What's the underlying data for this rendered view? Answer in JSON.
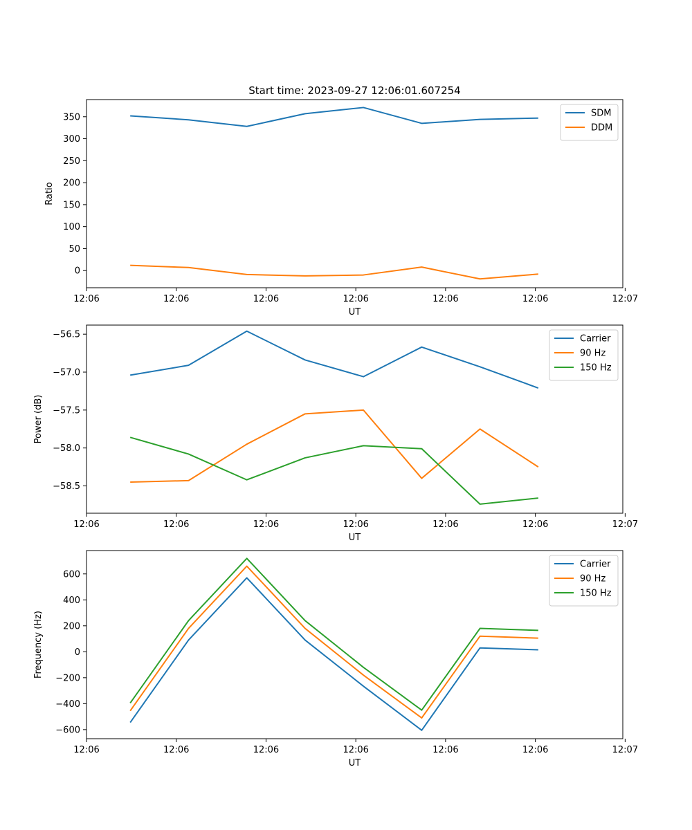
{
  "figure_title": "Start time: 2023-09-27 12:06:01.607254",
  "chart_data": [
    {
      "type": "line",
      "title": "Start time: 2023-09-27 12:06:01.607254",
      "xlabel": "UT",
      "ylabel": "Ratio",
      "xlim": [
        0,
        9.2
      ],
      "ylim": [
        -39,
        389
      ],
      "x": [
        0.75,
        1.75,
        2.75,
        3.75,
        4.75,
        5.75,
        6.75,
        7.75
      ],
      "x_ticks": [
        0,
        1.54,
        3.08,
        4.62,
        6.16,
        7.7,
        9.24
      ],
      "x_tick_labels": [
        "12:06",
        "12:06",
        "12:06",
        "12:06",
        "12:06",
        "12:06",
        "12:07"
      ],
      "y_ticks": [
        0,
        50,
        100,
        150,
        200,
        250,
        300,
        350
      ],
      "y_tick_labels": [
        "0",
        "50",
        "100",
        "150",
        "200",
        "250",
        "300",
        "350"
      ],
      "legend_position": "upper right",
      "series": [
        {
          "name": "SDM",
          "color": "#1f77b4",
          "values": [
            352,
            343,
            328,
            357,
            371,
            335,
            344,
            347
          ]
        },
        {
          "name": "DDM",
          "color": "#ff7f0e",
          "values": [
            12,
            7,
            -9,
            -12,
            -10,
            8,
            -19,
            -8
          ]
        }
      ]
    },
    {
      "type": "line",
      "title": "",
      "xlabel": "UT",
      "ylabel": "Power (dB)",
      "xlim": [
        0,
        9.2
      ],
      "ylim": [
        -58.86,
        -56.38
      ],
      "x": [
        0.75,
        1.75,
        2.75,
        3.75,
        4.75,
        5.75,
        6.75,
        7.75
      ],
      "x_ticks": [
        0,
        1.54,
        3.08,
        4.62,
        6.16,
        7.7,
        9.24
      ],
      "x_tick_labels": [
        "12:06",
        "12:06",
        "12:06",
        "12:06",
        "12:06",
        "12:06",
        "12:07"
      ],
      "y_ticks": [
        -58.5,
        -58.0,
        -57.5,
        -57.0,
        -56.5
      ],
      "y_tick_labels": [
        "−58.5",
        "−58.0",
        "−57.5",
        "−57.0",
        "−56.5"
      ],
      "legend_position": "upper right",
      "series": [
        {
          "name": "Carrier",
          "color": "#1f77b4",
          "values": [
            -57.04,
            -56.91,
            -56.46,
            -56.84,
            -57.06,
            -56.67,
            -56.93,
            -57.21
          ]
        },
        {
          "name": "90 Hz",
          "color": "#ff7f0e",
          "values": [
            -58.45,
            -58.43,
            -57.95,
            -57.55,
            -57.5,
            -58.4,
            -57.75,
            -58.25
          ]
        },
        {
          "name": "150 Hz",
          "color": "#2ca02c",
          "values": [
            -57.86,
            -58.08,
            -58.42,
            -58.13,
            -57.97,
            -58.01,
            -58.74,
            -58.66
          ]
        }
      ]
    },
    {
      "type": "line",
      "title": "",
      "xlabel": "UT",
      "ylabel": "Frequency (Hz)",
      "xlim": [
        0,
        9.2
      ],
      "ylim": [
        -670,
        780
      ],
      "x": [
        0.75,
        1.75,
        2.75,
        3.75,
        4.75,
        5.75,
        6.75,
        7.75
      ],
      "x_ticks": [
        0,
        1.54,
        3.08,
        4.62,
        6.16,
        7.7,
        9.24
      ],
      "x_tick_labels": [
        "12:06",
        "12:06",
        "12:06",
        "12:06",
        "12:06",
        "12:06",
        "12:07"
      ],
      "y_ticks": [
        -600,
        -400,
        -200,
        0,
        200,
        400,
        600
      ],
      "y_tick_labels": [
        "−600",
        "−400",
        "−200",
        "0",
        "200",
        "400",
        "600"
      ],
      "legend_position": "upper right",
      "series": [
        {
          "name": "Carrier",
          "color": "#1f77b4",
          "values": [
            -545,
            90,
            570,
            90,
            -265,
            -605,
            30,
            15
          ]
        },
        {
          "name": "90 Hz",
          "color": "#ff7f0e",
          "values": [
            -455,
            180,
            660,
            180,
            -180,
            -510,
            120,
            105
          ]
        },
        {
          "name": "150 Hz",
          "color": "#2ca02c",
          "values": [
            -395,
            240,
            720,
            240,
            -120,
            -450,
            180,
            165
          ]
        }
      ]
    }
  ]
}
